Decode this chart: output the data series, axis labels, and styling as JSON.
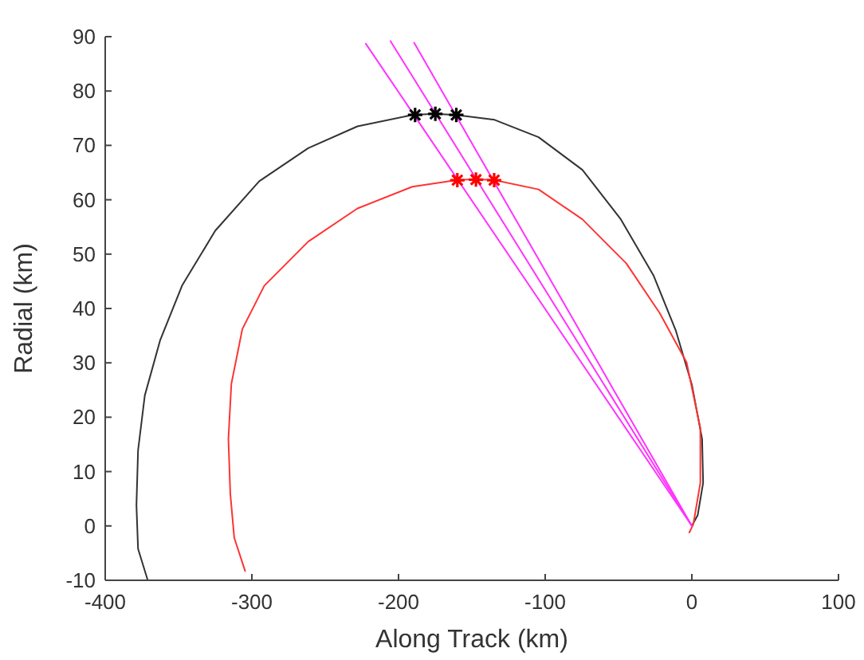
{
  "chart_data": {
    "type": "line",
    "xlabel": "Along Track (km)",
    "ylabel": "Radial (km)",
    "xlim": [
      -400,
      100
    ],
    "xticks": [
      -400,
      -300,
      -200,
      -100,
      0,
      100
    ],
    "ylim": [
      -10,
      90
    ],
    "yticks": [
      -10,
      0,
      10,
      20,
      30,
      40,
      50,
      60,
      70,
      80,
      90
    ],
    "grid": false,
    "line_style": "solid",
    "series": [
      {
        "color": "#333333",
        "marker": "none",
        "x": [
          0,
          4,
          7.7,
          7,
          0,
          -11,
          -26,
          -48.4,
          -74.6,
          -104.5,
          -134.5,
          -160.6,
          -175.6,
          -190.6,
          -228,
          -261.6,
          -295,
          -325,
          -347.6,
          -362.6,
          -373,
          -377.6,
          -378.7,
          -377.6,
          -371
        ],
        "values": [
          0,
          2,
          7.9,
          16,
          26,
          36,
          46,
          56.4,
          65.5,
          71.5,
          74.7,
          75.6,
          75.8,
          75.6,
          73.5,
          69.5,
          63.4,
          54.3,
          44.2,
          34.1,
          24,
          13.9,
          3.8,
          -4.2,
          -10
        ]
      },
      {
        "color": "#ff3333",
        "marker": "none",
        "x": [
          -1.7,
          1,
          5.8,
          5.8,
          -3.6,
          -22,
          -44.7,
          -74.6,
          -104.5,
          -134.5,
          -147.5,
          -160.6,
          -190.6,
          -228,
          -261.6,
          -291.5,
          -306.5,
          -314,
          -316,
          -314.7,
          -312,
          -304.6
        ],
        "values": [
          -1.2,
          0.3,
          7.9,
          18,
          30.1,
          39.2,
          48.3,
          56.4,
          61.9,
          63.6,
          63.8,
          63.6,
          62.4,
          58.4,
          52.3,
          44.2,
          36.2,
          26.1,
          16,
          5.9,
          -2.2,
          -8.3
        ]
      },
      {
        "color": "#ff33ff",
        "marker": "none",
        "x": [
          0,
          -222.3
        ],
        "values": [
          0,
          88.7
        ]
      },
      {
        "color": "#ff33ff",
        "marker": "none",
        "x": [
          0,
          -205.5
        ],
        "values": [
          0,
          89.2
        ]
      },
      {
        "color": "#ff33ff",
        "marker": "none",
        "x": [
          0,
          -189.4
        ],
        "values": [
          0,
          88.9
        ]
      },
      {
        "type": "scatter",
        "color": "#000000",
        "marker": "cross",
        "x": [
          -188.7,
          -174.9,
          -160.6
        ],
        "values": [
          75.6,
          75.8,
          75.6
        ]
      },
      {
        "type": "scatter",
        "color": "#ff0000",
        "marker": "cross",
        "x": [
          -159.9,
          -147.2,
          -134.8
        ],
        "values": [
          63.6,
          63.7,
          63.6
        ]
      }
    ]
  }
}
